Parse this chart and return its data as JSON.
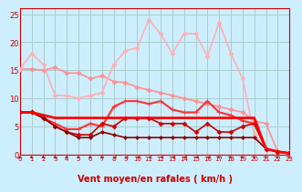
{
  "title": "",
  "xlabel": "Vent moyen/en rafales ( km/h )",
  "ylabel": "",
  "bg_color": "#cceeff",
  "grid_color": "#aacccc",
  "xlim": [
    0,
    23
  ],
  "ylim": [
    0,
    26
  ],
  "yticks": [
    0,
    5,
    10,
    15,
    20,
    25
  ],
  "xticks": [
    0,
    1,
    2,
    3,
    4,
    5,
    6,
    7,
    8,
    9,
    10,
    11,
    12,
    13,
    14,
    15,
    16,
    17,
    18,
    19,
    20,
    21,
    22,
    23
  ],
  "series": [
    {
      "x": [
        0,
        1,
        2,
        3,
        4,
        5,
        6,
        7,
        8,
        9,
        10,
        11,
        12,
        13,
        14,
        15,
        16,
        17,
        18,
        19,
        20,
        21,
        22,
        23
      ],
      "y": [
        15.2,
        15.2,
        15.0,
        15.5,
        14.5,
        14.5,
        13.5,
        14.0,
        13.0,
        12.8,
        12.0,
        11.5,
        11.0,
        10.5,
        10.0,
        9.5,
        9.0,
        8.5,
        8.0,
        7.5,
        6.0,
        5.5,
        0.5,
        0.2
      ],
      "color": "#ff9090",
      "lw": 1.2,
      "marker": "D",
      "ms": 2.5
    },
    {
      "x": [
        0,
        1,
        2,
        3,
        4,
        5,
        6,
        7,
        8,
        9,
        10,
        11,
        12,
        13,
        14,
        15,
        16,
        17,
        18,
        19,
        20,
        21,
        22,
        23
      ],
      "y": [
        15.2,
        18.0,
        16.0,
        10.5,
        10.5,
        10.0,
        10.5,
        11.0,
        16.0,
        18.5,
        19.0,
        24.0,
        21.5,
        18.0,
        21.5,
        21.5,
        17.5,
        23.5,
        18.0,
        13.5,
        3.5,
        1.0,
        0.5,
        0.5
      ],
      "color": "#ffb0b0",
      "lw": 1.2,
      "marker": "D",
      "ms": 2.5
    },
    {
      "x": [
        0,
        1,
        2,
        3,
        4,
        5,
        6,
        7,
        8,
        9,
        10,
        11,
        12,
        13,
        14,
        15,
        16,
        17,
        18,
        19,
        20,
        21,
        22,
        23
      ],
      "y": [
        7.5,
        7.5,
        6.5,
        5.5,
        4.5,
        4.5,
        5.5,
        5.0,
        8.5,
        9.5,
        9.5,
        9.0,
        9.5,
        8.0,
        7.5,
        7.5,
        9.5,
        7.5,
        7.0,
        6.0,
        5.5,
        1.0,
        0.5,
        0.2
      ],
      "color": "#ff3030",
      "lw": 1.5,
      "marker": "+",
      "ms": 4.0
    },
    {
      "x": [
        0,
        1,
        2,
        3,
        4,
        5,
        6,
        7,
        8,
        9,
        10,
        11,
        12,
        13,
        14,
        15,
        16,
        17,
        18,
        19,
        20,
        21,
        22,
        23
      ],
      "y": [
        7.5,
        7.5,
        6.5,
        5.0,
        4.0,
        3.5,
        3.5,
        5.5,
        5.0,
        6.5,
        6.5,
        6.5,
        5.5,
        5.5,
        5.5,
        4.0,
        5.5,
        4.0,
        4.0,
        5.0,
        5.5,
        1.0,
        0.5,
        0.2
      ],
      "color": "#cc0000",
      "lw": 1.2,
      "marker": "D",
      "ms": 2.5
    },
    {
      "x": [
        0,
        1,
        2,
        3,
        4,
        5,
        6,
        7,
        8,
        9,
        10,
        11,
        12,
        13,
        14,
        15,
        16,
        17,
        18,
        19,
        20,
        21,
        22,
        23
      ],
      "y": [
        7.5,
        7.5,
        6.5,
        5.0,
        4.0,
        3.0,
        3.0,
        4.0,
        3.5,
        3.0,
        3.0,
        3.0,
        3.0,
        3.0,
        3.0,
        3.0,
        3.0,
        3.0,
        3.0,
        3.0,
        3.0,
        1.0,
        0.5,
        0.2
      ],
      "color": "#880000",
      "lw": 1.2,
      "marker": "D",
      "ms": 2.0
    },
    {
      "x": [
        0,
        1,
        2,
        3,
        4,
        5,
        6,
        7,
        8,
        9,
        10,
        11,
        12,
        13,
        14,
        15,
        16,
        17,
        18,
        19,
        20,
        21,
        22,
        23
      ],
      "y": [
        7.5,
        7.5,
        7.0,
        6.5,
        6.5,
        6.5,
        6.5,
        6.5,
        6.5,
        6.5,
        6.5,
        6.5,
        6.5,
        6.5,
        6.5,
        6.5,
        6.5,
        6.5,
        6.5,
        6.5,
        6.5,
        1.0,
        0.5,
        0.2
      ],
      "color": "#ff0000",
      "lw": 2.0,
      "marker": null,
      "ms": 0
    }
  ],
  "wind_arrows": {
    "x": [
      0,
      1,
      2,
      3,
      4,
      5,
      6,
      7,
      8,
      9,
      10,
      11,
      12,
      13,
      14,
      15,
      16,
      17,
      18,
      19,
      20,
      21,
      22,
      23
    ],
    "angles_deg": [
      225,
      225,
      225,
      225,
      225,
      225,
      225,
      225,
      270,
      270,
      270,
      270,
      270,
      270,
      270,
      270,
      270,
      315,
      315,
      315,
      315,
      315,
      315,
      315
    ]
  }
}
